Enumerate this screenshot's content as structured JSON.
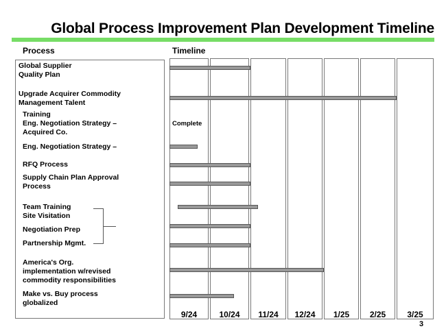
{
  "title": "Global Process Improvement Plan Development Timeline",
  "headers": {
    "process": "Process",
    "timeline": "Timeline"
  },
  "page_number": "3",
  "colors": {
    "accent_bar": "#77dd66",
    "gantt_bar": "#999999"
  },
  "chart_data": {
    "type": "gantt",
    "title": "Global Process Improvement Plan Development Timeline",
    "months": [
      "9/24",
      "10/24",
      "11/24",
      "12/24",
      "1/25",
      "2/25",
      "3/25"
    ],
    "tasks": [
      {
        "label": "Global Supplier\nQuality Plan",
        "start": 0.0,
        "end": 2.0
      },
      {
        "label": "Upgrade Acquirer Commodity\nManagement Talent",
        "start": 0.0,
        "end": 6.0
      },
      {
        "label": "Training\nEng. Negotiation Strategy –\nAcquired Co.",
        "status": "Complete"
      },
      {
        "label": "Eng. Negotiation Strategy –",
        "start": 0.0,
        "end": 0.7
      },
      {
        "label": "RFQ Process",
        "start": 0.0,
        "end": 2.0
      },
      {
        "label": "Supply Chain Plan Approval\nProcess",
        "start": 0.0,
        "end": 2.0
      },
      {
        "label": "Team Training\nSite Visitation",
        "start": 0.2,
        "end": 2.2
      },
      {
        "label": "Negotiation Prep",
        "start": 0.0,
        "end": 2.0
      },
      {
        "label": "Partnership Mgmt.",
        "start": 0.0,
        "end": 2.0
      },
      {
        "label": "America's Org.\nimplementation w/revised\ncommodity responsibilities",
        "start": 0.0,
        "end": 4.0
      },
      {
        "label": "Make vs. Buy process\nglobalized",
        "start": 0.0,
        "end": 1.6
      }
    ]
  }
}
